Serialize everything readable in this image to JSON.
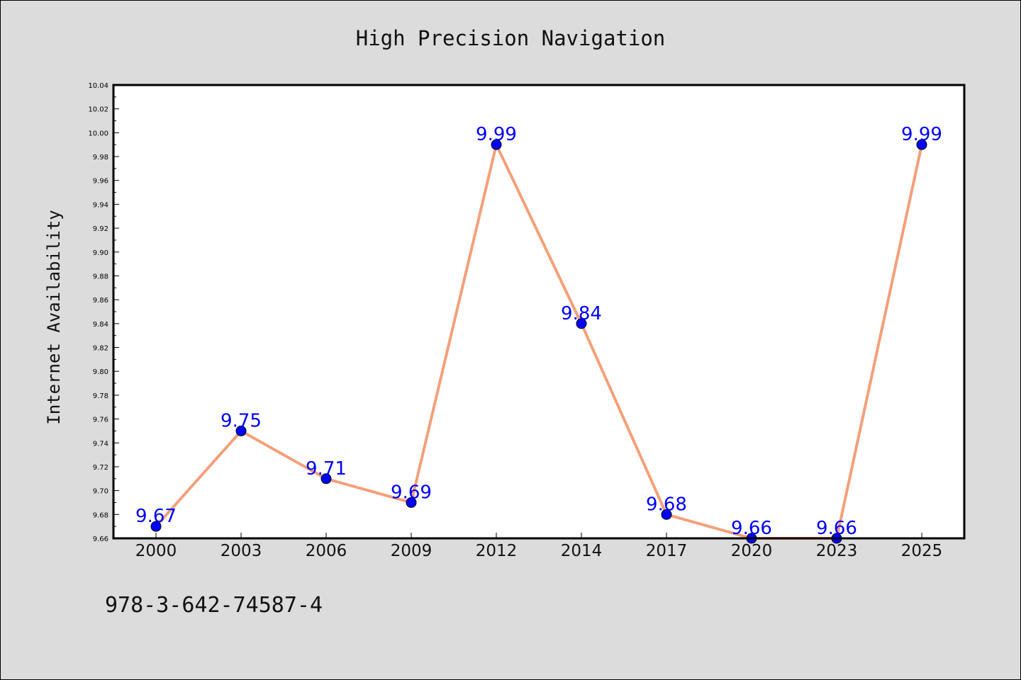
{
  "chart_data": {
    "type": "line",
    "title": "High Precision Navigation",
    "xlabel": "",
    "ylabel": "Internet Availability",
    "categories": [
      "2000",
      "2003",
      "2006",
      "2009",
      "2012",
      "2014",
      "2017",
      "2020",
      "2023",
      "2025"
    ],
    "series": [
      {
        "values": [
          9.67,
          9.75,
          9.71,
          9.69,
          9.99,
          9.84,
          9.68,
          9.66,
          9.66,
          9.99
        ],
        "data_labels": [
          "9.67",
          "9.75",
          "9.71",
          "9.69",
          "9.99",
          "9.84",
          "9.68",
          "9.66",
          "9.66",
          "9.99"
        ]
      }
    ],
    "ylim": [
      9.66,
      10.04
    ],
    "yticks": [
      "9.66",
      "9.68",
      "9.70",
      "9.72",
      "9.74",
      "9.76",
      "9.78",
      "9.80",
      "9.82",
      "9.84",
      "9.86",
      "9.88",
      "9.90",
      "9.92",
      "9.94",
      "9.96",
      "9.98",
      "10.00",
      "10.02",
      "10.04"
    ],
    "grid": false,
    "legend": "none",
    "colors": {
      "line": "#f4a07a",
      "marker": "#0000ff",
      "data_label": "#0000ff",
      "background": "#dcdcdc",
      "plot_background": "#ffffff"
    }
  },
  "footer_text": "978-3-642-74587-4"
}
